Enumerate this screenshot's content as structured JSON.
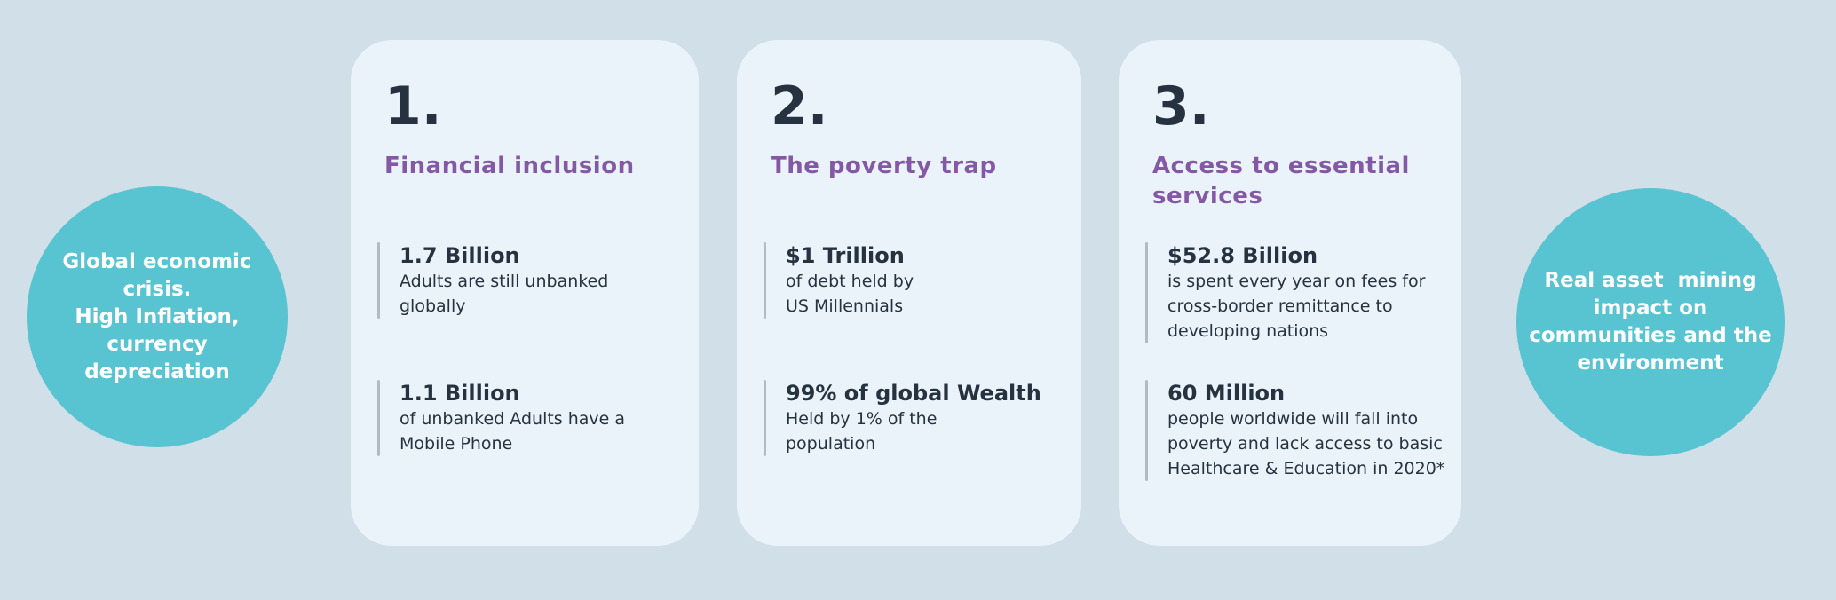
{
  "colors": {
    "background": "#d1dfe9",
    "card_background": "#e9f3f9",
    "circle_teal": "#58c4d1",
    "heading_purple": "#8458a4",
    "text_navy": "#26323f",
    "stat_bar_gray": "#b3bbc1",
    "circle_text_white": "#ffffff"
  },
  "left_circle": {
    "text": "Global economic\ncrisis.\nHigh Inflation,\ncurrency\ndepreciation"
  },
  "right_circle": {
    "text": "Real asset  mining\nimpact on\ncommunities and the\nenvironment"
  },
  "cards": [
    {
      "number": "1.",
      "heading": "Financial inclusion",
      "stats": [
        {
          "title": "1.7 Billion",
          "description": "Adults are still unbanked\nglobally"
        },
        {
          "title": "1.1 Billion",
          "description": "of unbanked Adults have a\nMobile Phone"
        }
      ]
    },
    {
      "number": "2.",
      "heading": "The poverty trap",
      "stats": [
        {
          "title": "$1 Trillion",
          "description": "of debt held by\nUS Millennials"
        },
        {
          "title": "99% of global Wealth",
          "description": "Held by 1% of the\npopulation"
        }
      ]
    },
    {
      "number": "3.",
      "heading": "Access to essential\nservices",
      "stats": [
        {
          "title": "$52.8 Billion",
          "description": "is spent every year on fees for\ncross-border remittance to\ndeveloping nations"
        },
        {
          "title": "60 Million",
          "description": "people worldwide will fall into\npoverty and lack access to basic\nHealthcare & Education in 2020*"
        }
      ]
    }
  ]
}
